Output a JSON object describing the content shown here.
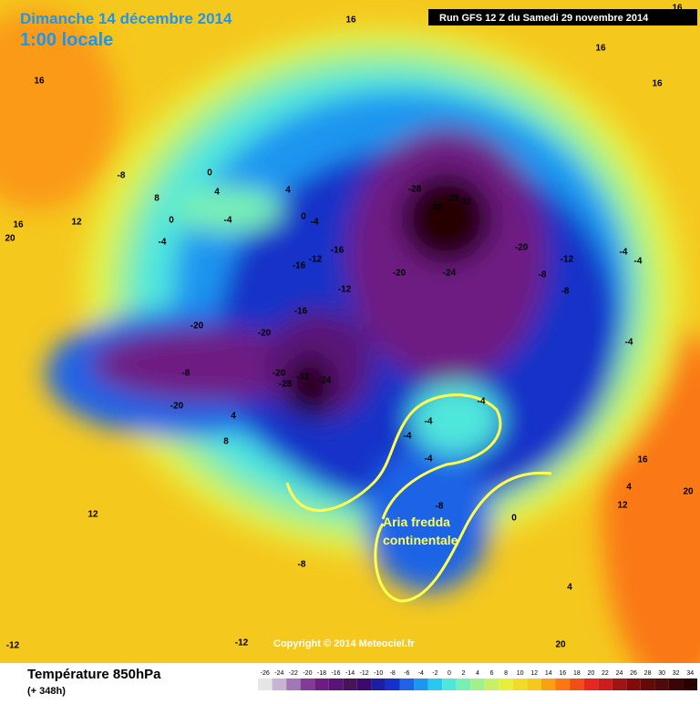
{
  "header": {
    "title": "Dimanche 14 décembre 2014",
    "time": "1:00 locale",
    "run": "Run GFS 12 Z du Samedi 29 novembre 2014"
  },
  "footer": {
    "variable": "Température 850hPa",
    "lead": "(+ 348h)",
    "copyright": "Copyright © 2014 Meteociel.fr"
  },
  "annotation": {
    "lines": [
      "Aria fredda",
      "continentale"
    ]
  },
  "contour_labels": [
    "-28",
    "-32",
    "-28",
    "-32",
    "-20",
    "-24",
    "-20",
    "-16",
    "-16",
    "-12",
    "-12",
    "-16",
    "-20",
    "-20",
    "-8",
    "-20",
    "-20",
    "-32",
    "-24",
    "-28",
    "-8",
    "-12",
    "-8",
    "-4",
    "-4",
    "-4",
    "-4",
    "-4",
    "-4",
    "-4",
    "-8",
    "0",
    "0",
    "4",
    "-4",
    "4",
    "0",
    "-4",
    "-8",
    "8",
    "12",
    "-4",
    "0",
    "16",
    "16",
    "16",
    "16",
    "20",
    "12",
    "12",
    "16",
    "20",
    "20",
    "-12",
    "4",
    "8",
    "4",
    "4",
    "-8",
    "-12",
    "16",
    "16"
  ],
  "colorbar": {
    "labels": [
      "-26",
      "-24",
      "-22",
      "-20",
      "-18",
      "-16",
      "-14",
      "-12",
      "-10",
      "-8",
      "-6",
      "-4",
      "-2",
      "0",
      "2",
      "4",
      "6",
      "8",
      "10",
      "12",
      "14",
      "16",
      "18",
      "20",
      "22",
      "24",
      "26",
      "28",
      "30",
      "32",
      "34"
    ],
    "colors": [
      "#e6e6e6",
      "#c8b4d2",
      "#a078b4",
      "#823c96",
      "#6e1e82",
      "#5a1478",
      "#46145a",
      "#3c0a6e",
      "#1e1ea0",
      "#1432c8",
      "#1e64e6",
      "#1e96f0",
      "#28c8f0",
      "#50e6dc",
      "#78f0b4",
      "#a0f08c",
      "#c8f064",
      "#e6f03c",
      "#f0dc28",
      "#f5c81e",
      "#faa014",
      "#fa7814",
      "#f05014",
      "#e6281e",
      "#c81e1e",
      "#a01414",
      "#820a0a",
      "#640a0a",
      "#500a0a",
      "#3c0505",
      "#280000"
    ]
  }
}
